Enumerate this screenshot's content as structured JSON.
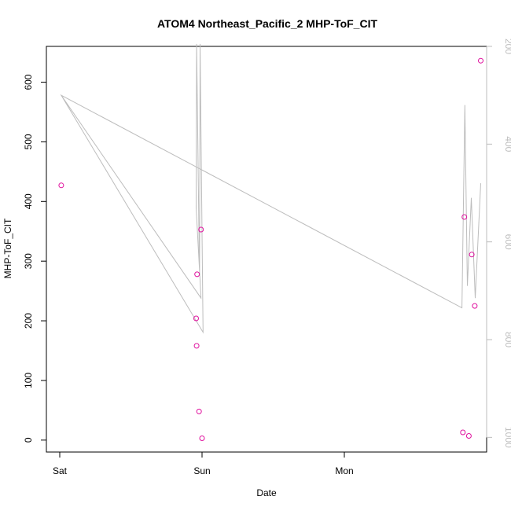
{
  "chart_data": {
    "type": "scatter",
    "title": "ATOM4 Northeast_Pacific_2 MHP-ToF_CIT",
    "xlabel": "Date",
    "ylabel": "MHP-ToF_CIT",
    "x_ticks": [
      "Sat",
      "Sun",
      "Mon"
    ],
    "ylim": [
      -20,
      660
    ],
    "y_ticks": [
      0,
      100,
      200,
      300,
      400,
      500,
      600
    ],
    "y2lim": [
      1030,
      200
    ],
    "y2_ticks": [
      200,
      400,
      600,
      800,
      1000
    ],
    "point_color": "#e0119e",
    "line_color": "#bdbdbd",
    "points": [
      {
        "x": "Sat 00:15",
        "y": 427
      },
      {
        "x": "Sat 23:00",
        "y": 204
      },
      {
        "x": "Sat 23:05",
        "y": 158
      },
      {
        "x": "Sat 23:10",
        "y": 278
      },
      {
        "x": "Sat 23:30",
        "y": 48
      },
      {
        "x": "Sat 23:50",
        "y": 353
      },
      {
        "x": "Sun 00:00",
        "y": 3
      },
      {
        "x": "Mon 20:00",
        "y": 13
      },
      {
        "x": "Mon 20:15",
        "y": 374
      },
      {
        "x": "Mon 21:00",
        "y": 7
      },
      {
        "x": "Mon 21:30",
        "y": 311
      },
      {
        "x": "Mon 22:00",
        "y": 225
      },
      {
        "x": "Mon 23:00",
        "y": 636
      }
    ],
    "line_series": {
      "axis": "right",
      "points": [
        {
          "x": "Sat 00:15",
          "y": 300
        },
        {
          "x": "Sat 23:50",
          "y": 715
        },
        {
          "x": "Sat 23:00",
          "y": 530
        },
        {
          "x": "Sat 23:05",
          "y": 195
        },
        {
          "x": "Sat 23:30",
          "y": 600
        },
        {
          "x": "Sat 23:35",
          "y": 660
        },
        {
          "x": "Sat 23:40",
          "y": 195
        },
        {
          "x": "Sun 00:10",
          "y": 785
        },
        {
          "x": "Sat 00:15",
          "y": 300
        },
        {
          "x": "Mon 19:50",
          "y": 735
        },
        {
          "x": "Mon 20:20",
          "y": 320
        },
        {
          "x": "Mon 20:45",
          "y": 690
        },
        {
          "x": "Mon 21:25",
          "y": 510
        },
        {
          "x": "Mon 22:05",
          "y": 715
        },
        {
          "x": "Mon 23:00",
          "y": 480
        }
      ]
    }
  }
}
